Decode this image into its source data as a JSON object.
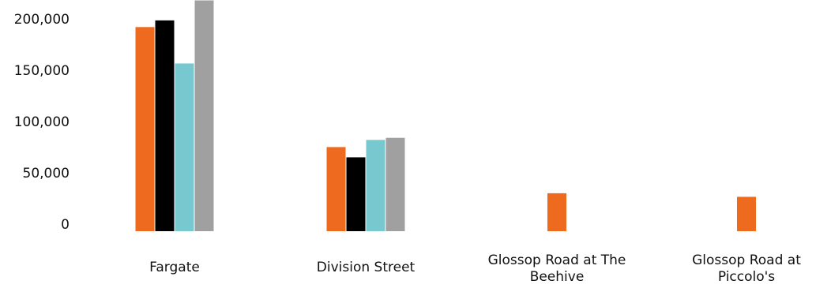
{
  "chart_data": {
    "type": "bar",
    "title": "",
    "xlabel": "",
    "ylabel": "",
    "ylim": [
      0,
      200000
    ],
    "y_ticks": [
      0,
      50000,
      100000,
      150000,
      200000
    ],
    "y_tick_labels": [
      "0",
      "50,000",
      "100,000",
      "150,000",
      "200,000"
    ],
    "categories": [
      "Fargate",
      "Division Street",
      "Glossop Road at The Beehive",
      "Glossop Road at Piccolo's"
    ],
    "category_label_lines": [
      [
        "Fargate"
      ],
      [
        "Division Street"
      ],
      [
        "Glossop Road at The",
        "Beehive"
      ],
      [
        "Glossop Road at",
        "Piccolo's"
      ]
    ],
    "grid": false,
    "legend": "none",
    "series": [
      {
        "color": "#ee6a1f",
        "values": [
          199000,
          82000,
          37000,
          33500
        ]
      },
      {
        "color": "#000000",
        "values": [
          205500,
          72000,
          null,
          null
        ]
      },
      {
        "color": "#78c8d0",
        "values": [
          163500,
          89000,
          null,
          null
        ]
      },
      {
        "color": "#a0a0a0",
        "values": [
          225000,
          91000,
          null,
          null
        ]
      }
    ]
  }
}
